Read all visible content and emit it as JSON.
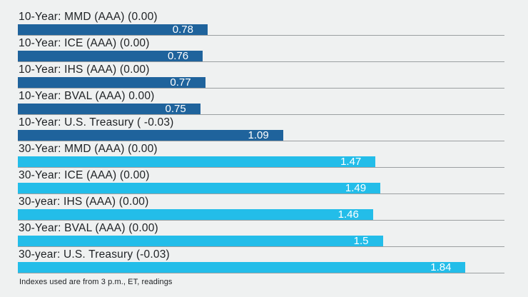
{
  "page": {
    "background_color": "#eff1f1",
    "text_color": "#1e2124",
    "baseline_color": "#9b9fa1",
    "value_text_color": "#ffffff"
  },
  "chart_data": {
    "type": "bar",
    "orientation": "horizontal",
    "title": "",
    "xlabel": "",
    "ylabel": "",
    "xlim": [
      0,
      2.0
    ],
    "grid": false,
    "legend": "none",
    "categories": [
      "10-Year: MMD (AAA) (0.00)",
      "10-Year: ICE (AAA) (0.00)",
      "10-Year: IHS (AAA) (0.00)",
      "10-Year: BVAL (AAA) 0.00)",
      "10-Year: U.S. Treasury ( -0.03)",
      "30-Year: MMD (AAA) (0.00)",
      "30-Year: ICE (AAA) (0.00)",
      "30-year: IHS (AAA) (0.00)",
      "30-Year: BVAL (AAA) (0.00)",
      "30-year: U.S. Treasury (-0.03)"
    ],
    "values": [
      0.78,
      0.76,
      0.77,
      0.75,
      1.09,
      1.47,
      1.49,
      1.46,
      1.5,
      1.84
    ],
    "display_values": [
      "0.78",
      "0.76",
      "0.77",
      "0.75",
      "1.09",
      "1.47",
      "1.49",
      "1.46",
      "1.5",
      "1.84"
    ],
    "series_groups": [
      {
        "name": "10-Year",
        "color": "#1f639c",
        "row_indices": [
          0,
          1,
          2,
          3,
          4
        ]
      },
      {
        "name": "30-Year",
        "color": "#23bde9",
        "row_indices": [
          5,
          6,
          7,
          8,
          9
        ]
      }
    ],
    "footnote": "Indexes used are from 3 p.m., ET, readings"
  }
}
